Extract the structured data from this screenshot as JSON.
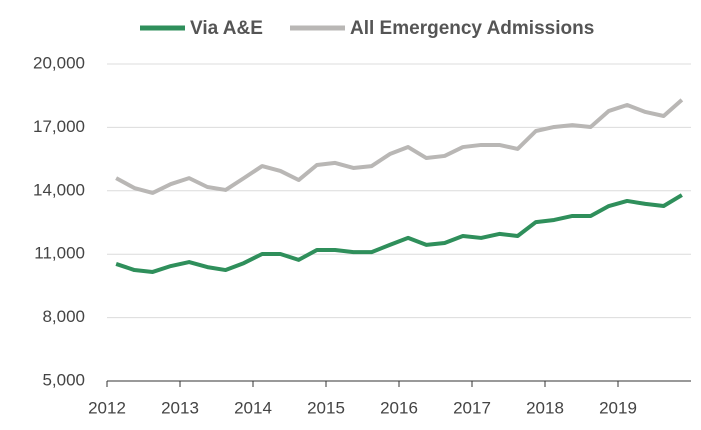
{
  "chart_data": {
    "type": "line",
    "x": [
      2012.125,
      2012.375,
      2012.625,
      2012.875,
      2013.125,
      2013.375,
      2013.625,
      2013.875,
      2014.125,
      2014.375,
      2014.625,
      2014.875,
      2015.125,
      2015.375,
      2015.625,
      2015.875,
      2016.125,
      2016.375,
      2016.625,
      2016.875,
      2017.125,
      2017.375,
      2017.625,
      2017.875,
      2018.125,
      2018.375,
      2018.625,
      2018.875,
      2019.125,
      2019.375,
      2019.625,
      2019.875
    ],
    "series": [
      {
        "name": "Via A&E",
        "color": "#2f8f5b",
        "values": [
          10540,
          10250,
          10160,
          10440,
          10630,
          10390,
          10250,
          10580,
          11010,
          11010,
          10730,
          11200,
          11200,
          11100,
          11100,
          11440,
          11770,
          11440,
          11530,
          11860,
          11770,
          11960,
          11860,
          12520,
          12620,
          12810,
          12810,
          13280,
          13520,
          13380,
          13280,
          13800
        ]
      },
      {
        "name": "All Emergency Admissions",
        "color": "#b9b7b5",
        "values": [
          14600,
          14130,
          13900,
          14320,
          14600,
          14180,
          14040,
          14600,
          15170,
          14940,
          14510,
          15220,
          15320,
          15080,
          15170,
          15740,
          16070,
          15550,
          15650,
          16070,
          16170,
          16170,
          15980,
          16830,
          17020,
          17110,
          17020,
          17780,
          18060,
          17730,
          17540,
          18300
        ]
      }
    ],
    "xlim": [
      2012,
      2020
    ],
    "xticks": [
      2012,
      2013,
      2014,
      2015,
      2016,
      2017,
      2018,
      2019
    ],
    "ylim": [
      5000,
      20000
    ],
    "yticks": [
      {
        "value": 5000,
        "label": "5,000"
      },
      {
        "value": 8000,
        "label": "8,000"
      },
      {
        "value": 11000,
        "label": "11,000"
      },
      {
        "value": 14000,
        "label": "14,000"
      },
      {
        "value": 17000,
        "label": "17,000"
      },
      {
        "value": 20000,
        "label": "20,000"
      }
    ],
    "grid": true
  }
}
